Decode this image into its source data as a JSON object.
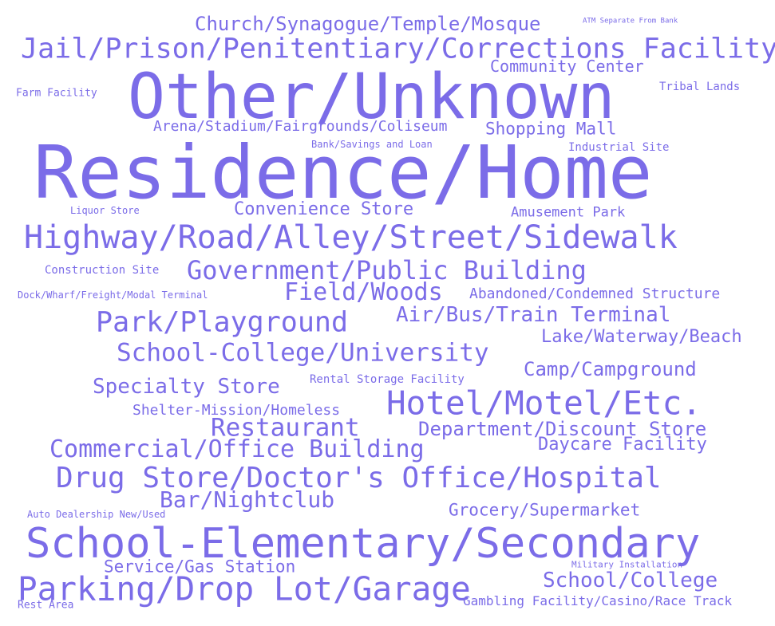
{
  "color": "#7B6CE8",
  "words": [
    "Residence/Home",
    "Other/Unknown",
    "School-Elementary/Secondary",
    "Highway/Road/Alley/Street/Sidewalk",
    "Jail/Prison/Penitentiary/Corrections Facility",
    "Parking/Drop Lot/Garage",
    "Drug Store/Doctor's Office/Hospital",
    "Hotel/Motel/Etc.",
    "Government/Public Building",
    "School-College/University",
    "Park/Playground",
    "Commercial/Office Building",
    "Field/Woods",
    "Restaurant",
    "Bar/Nightclub",
    "Church/Synagogue/Temple/Mosque",
    "Air/Bus/Train Terminal",
    "School/College",
    "Department/Discount Store",
    "Specialty Store",
    "Convenience Store",
    "Camp/Campground",
    "Lake/Waterway/Beach",
    "Daycare Facility",
    "Service/Gas Station",
    "Grocery/Supermarket",
    "Shopping Mall",
    "Arena/Stadium/Fairgrounds/Coliseum",
    "Community Center",
    "Abandoned/Condemned Structure",
    "Amusement Park",
    "Shelter-Mission/Homeless",
    "Gambling Facility/Casino/Race Track",
    "Tribal Lands",
    "Industrial Site",
    "Construction Site",
    "Farm Facility",
    "Rental Storage Facility",
    "Liquor Store",
    "Dock/Wharf/Freight/Modal Terminal",
    "Bank/Savings and Loan",
    "Auto Dealership New/Used",
    "Rest Area",
    "Military Installation",
    "ATM Separate From Bank"
  ]
}
